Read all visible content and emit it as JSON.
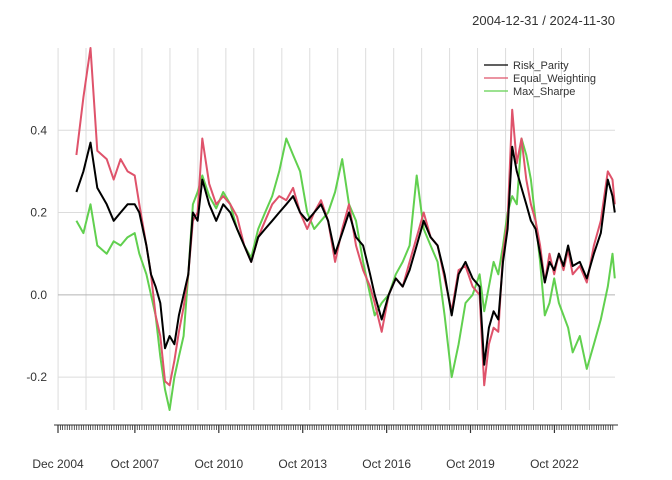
{
  "chart_data": {
    "type": "line",
    "subtitle": "2004-12-31 / 2024-11-30",
    "x_ticks": [
      "Dec 2004",
      "Oct 2007",
      "Oct 2010",
      "Oct 2013",
      "Oct 2016",
      "Oct 2019",
      "Oct 2022"
    ],
    "ylim": [
      -0.28,
      0.6
    ],
    "y_ticks": [
      "-0.2",
      "0.0",
      "0.2",
      "0.4"
    ],
    "y_tick_values": [
      -0.2,
      0.0,
      0.2,
      0.4
    ],
    "grid": true,
    "legend_position": "top-right",
    "series": [
      {
        "name": "Risk_Parity",
        "color": "#000000",
        "points": [
          [
            "2005-08",
            0.25
          ],
          [
            "2005-11",
            0.3
          ],
          [
            "2006-02",
            0.37
          ],
          [
            "2006-05",
            0.26
          ],
          [
            "2006-09",
            0.22
          ],
          [
            "2006-12",
            0.18
          ],
          [
            "2007-03",
            0.2
          ],
          [
            "2007-06",
            0.22
          ],
          [
            "2007-09",
            0.22
          ],
          [
            "2007-11",
            0.2
          ],
          [
            "2008-02",
            0.12
          ],
          [
            "2008-04",
            0.05
          ],
          [
            "2008-06",
            0.02
          ],
          [
            "2008-08",
            -0.02
          ],
          [
            "2008-10",
            -0.13
          ],
          [
            "2008-12",
            -0.1
          ],
          [
            "2009-02",
            -0.12
          ],
          [
            "2009-04",
            -0.05
          ],
          [
            "2009-06",
            0.0
          ],
          [
            "2009-08",
            0.05
          ],
          [
            "2009-10",
            0.2
          ],
          [
            "2009-12",
            0.18
          ],
          [
            "2010-02",
            0.28
          ],
          [
            "2010-05",
            0.22
          ],
          [
            "2010-08",
            0.18
          ],
          [
            "2010-11",
            0.22
          ],
          [
            "2011-02",
            0.2
          ],
          [
            "2011-05",
            0.16
          ],
          [
            "2011-08",
            0.12
          ],
          [
            "2011-11",
            0.08
          ],
          [
            "2012-02",
            0.14
          ],
          [
            "2012-05",
            0.16
          ],
          [
            "2012-08",
            0.18
          ],
          [
            "2012-11",
            0.2
          ],
          [
            "2013-02",
            0.22
          ],
          [
            "2013-05",
            0.24
          ],
          [
            "2013-08",
            0.2
          ],
          [
            "2013-11",
            0.18
          ],
          [
            "2014-02",
            0.2
          ],
          [
            "2014-05",
            0.22
          ],
          [
            "2014-08",
            0.18
          ],
          [
            "2014-11",
            0.1
          ],
          [
            "2015-02",
            0.15
          ],
          [
            "2015-05",
            0.2
          ],
          [
            "2015-08",
            0.14
          ],
          [
            "2015-11",
            0.12
          ],
          [
            "2016-02",
            0.05
          ],
          [
            "2016-04",
            0.0
          ],
          [
            "2016-07",
            -0.06
          ],
          [
            "2016-10",
            0.0
          ],
          [
            "2017-01",
            0.04
          ],
          [
            "2017-04",
            0.02
          ],
          [
            "2017-07",
            0.06
          ],
          [
            "2017-10",
            0.12
          ],
          [
            "2018-01",
            0.18
          ],
          [
            "2018-04",
            0.14
          ],
          [
            "2018-07",
            0.12
          ],
          [
            "2018-10",
            0.05
          ],
          [
            "2019-01",
            -0.05
          ],
          [
            "2019-04",
            0.05
          ],
          [
            "2019-07",
            0.08
          ],
          [
            "2019-10",
            0.04
          ],
          [
            "2020-01",
            0.02
          ],
          [
            "2020-03",
            -0.17
          ],
          [
            "2020-05",
            -0.08
          ],
          [
            "2020-07",
            -0.04
          ],
          [
            "2020-09",
            -0.06
          ],
          [
            "2020-11",
            0.08
          ],
          [
            "2021-01",
            0.16
          ],
          [
            "2021-03",
            0.36
          ],
          [
            "2021-05",
            0.3
          ],
          [
            "2021-07",
            0.26
          ],
          [
            "2021-09",
            0.22
          ],
          [
            "2021-11",
            0.18
          ],
          [
            "2022-01",
            0.16
          ],
          [
            "2022-03",
            0.1
          ],
          [
            "2022-05",
            0.03
          ],
          [
            "2022-07",
            0.08
          ],
          [
            "2022-09",
            0.06
          ],
          [
            "2022-11",
            0.1
          ],
          [
            "2023-01",
            0.07
          ],
          [
            "2023-03",
            0.12
          ],
          [
            "2023-05",
            0.07
          ],
          [
            "2023-08",
            0.08
          ],
          [
            "2023-11",
            0.04
          ],
          [
            "2024-02",
            0.1
          ],
          [
            "2024-05",
            0.15
          ],
          [
            "2024-08",
            0.28
          ],
          [
            "2024-10",
            0.24
          ],
          [
            "2024-11",
            0.2
          ]
        ]
      },
      {
        "name": "Equal_Weighting",
        "color": "#df536b",
        "points": [
          [
            "2005-08",
            0.34
          ],
          [
            "2005-11",
            0.48
          ],
          [
            "2006-02",
            0.6
          ],
          [
            "2006-05",
            0.35
          ],
          [
            "2006-09",
            0.33
          ],
          [
            "2006-12",
            0.28
          ],
          [
            "2007-03",
            0.33
          ],
          [
            "2007-06",
            0.3
          ],
          [
            "2007-09",
            0.29
          ],
          [
            "2007-11",
            0.22
          ],
          [
            "2008-02",
            0.12
          ],
          [
            "2008-04",
            0.05
          ],
          [
            "2008-06",
            -0.05
          ],
          [
            "2008-08",
            -0.1
          ],
          [
            "2008-10",
            -0.21
          ],
          [
            "2008-12",
            -0.22
          ],
          [
            "2009-02",
            -0.16
          ],
          [
            "2009-04",
            -0.09
          ],
          [
            "2009-06",
            -0.03
          ],
          [
            "2009-08",
            0.05
          ],
          [
            "2009-10",
            0.18
          ],
          [
            "2009-12",
            0.2
          ],
          [
            "2010-02",
            0.38
          ],
          [
            "2010-05",
            0.27
          ],
          [
            "2010-08",
            0.22
          ],
          [
            "2010-11",
            0.24
          ],
          [
            "2011-02",
            0.22
          ],
          [
            "2011-05",
            0.19
          ],
          [
            "2011-08",
            0.12
          ],
          [
            "2011-11",
            0.08
          ],
          [
            "2012-02",
            0.14
          ],
          [
            "2012-05",
            0.18
          ],
          [
            "2012-08",
            0.22
          ],
          [
            "2012-11",
            0.24
          ],
          [
            "2013-02",
            0.23
          ],
          [
            "2013-05",
            0.26
          ],
          [
            "2013-08",
            0.2
          ],
          [
            "2013-11",
            0.16
          ],
          [
            "2014-02",
            0.2
          ],
          [
            "2014-05",
            0.23
          ],
          [
            "2014-08",
            0.18
          ],
          [
            "2014-11",
            0.08
          ],
          [
            "2015-02",
            0.16
          ],
          [
            "2015-05",
            0.22
          ],
          [
            "2015-08",
            0.12
          ],
          [
            "2015-11",
            0.06
          ],
          [
            "2016-02",
            0.02
          ],
          [
            "2016-04",
            -0.02
          ],
          [
            "2016-07",
            -0.09
          ],
          [
            "2016-10",
            0.0
          ],
          [
            "2017-01",
            0.04
          ],
          [
            "2017-04",
            0.02
          ],
          [
            "2017-07",
            0.08
          ],
          [
            "2017-10",
            0.14
          ],
          [
            "2018-01",
            0.2
          ],
          [
            "2018-04",
            0.14
          ],
          [
            "2018-07",
            0.12
          ],
          [
            "2018-10",
            0.04
          ],
          [
            "2019-01",
            -0.04
          ],
          [
            "2019-04",
            0.06
          ],
          [
            "2019-07",
            0.07
          ],
          [
            "2019-10",
            0.02
          ],
          [
            "2020-01",
            0.0
          ],
          [
            "2020-03",
            -0.22
          ],
          [
            "2020-05",
            -0.12
          ],
          [
            "2020-07",
            -0.08
          ],
          [
            "2020-09",
            -0.09
          ],
          [
            "2020-11",
            0.1
          ],
          [
            "2021-01",
            0.18
          ],
          [
            "2021-03",
            0.45
          ],
          [
            "2021-05",
            0.32
          ],
          [
            "2021-07",
            0.38
          ],
          [
            "2021-09",
            0.28
          ],
          [
            "2021-11",
            0.22
          ],
          [
            "2022-01",
            0.18
          ],
          [
            "2022-03",
            0.12
          ],
          [
            "2022-05",
            0.03
          ],
          [
            "2022-07",
            0.1
          ],
          [
            "2022-09",
            0.05
          ],
          [
            "2022-11",
            0.1
          ],
          [
            "2023-01",
            0.06
          ],
          [
            "2023-03",
            0.11
          ],
          [
            "2023-05",
            0.05
          ],
          [
            "2023-08",
            0.07
          ],
          [
            "2023-11",
            0.03
          ],
          [
            "2024-02",
            0.12
          ],
          [
            "2024-05",
            0.18
          ],
          [
            "2024-08",
            0.3
          ],
          [
            "2024-10",
            0.28
          ],
          [
            "2024-11",
            0.22
          ]
        ]
      },
      {
        "name": "Max_Sharpe",
        "color": "#61d04f",
        "points": [
          [
            "2005-08",
            0.18
          ],
          [
            "2005-11",
            0.15
          ],
          [
            "2006-02",
            0.22
          ],
          [
            "2006-05",
            0.12
          ],
          [
            "2006-09",
            0.1
          ],
          [
            "2006-12",
            0.13
          ],
          [
            "2007-03",
            0.12
          ],
          [
            "2007-06",
            0.14
          ],
          [
            "2007-09",
            0.15
          ],
          [
            "2007-11",
            0.1
          ],
          [
            "2008-02",
            0.05
          ],
          [
            "2008-04",
            0.0
          ],
          [
            "2008-06",
            -0.05
          ],
          [
            "2008-08",
            -0.15
          ],
          [
            "2008-10",
            -0.23
          ],
          [
            "2008-12",
            -0.28
          ],
          [
            "2009-02",
            -0.2
          ],
          [
            "2009-04",
            -0.15
          ],
          [
            "2009-06",
            -0.1
          ],
          [
            "2009-08",
            0.05
          ],
          [
            "2009-10",
            0.22
          ],
          [
            "2009-12",
            0.25
          ],
          [
            "2010-02",
            0.29
          ],
          [
            "2010-05",
            0.24
          ],
          [
            "2010-08",
            0.21
          ],
          [
            "2010-11",
            0.25
          ],
          [
            "2011-02",
            0.22
          ],
          [
            "2011-05",
            0.16
          ],
          [
            "2011-08",
            0.12
          ],
          [
            "2011-11",
            0.09
          ],
          [
            "2012-02",
            0.16
          ],
          [
            "2012-05",
            0.2
          ],
          [
            "2012-08",
            0.24
          ],
          [
            "2012-11",
            0.3
          ],
          [
            "2013-02",
            0.38
          ],
          [
            "2013-05",
            0.34
          ],
          [
            "2013-08",
            0.3
          ],
          [
            "2013-11",
            0.2
          ],
          [
            "2014-02",
            0.16
          ],
          [
            "2014-05",
            0.18
          ],
          [
            "2014-08",
            0.2
          ],
          [
            "2014-11",
            0.25
          ],
          [
            "2015-02",
            0.33
          ],
          [
            "2015-05",
            0.22
          ],
          [
            "2015-08",
            0.18
          ],
          [
            "2015-11",
            0.08
          ],
          [
            "2016-02",
            0.0
          ],
          [
            "2016-04",
            -0.05
          ],
          [
            "2016-07",
            -0.02
          ],
          [
            "2016-10",
            0.0
          ],
          [
            "2017-01",
            0.05
          ],
          [
            "2017-04",
            0.08
          ],
          [
            "2017-07",
            0.12
          ],
          [
            "2017-10",
            0.29
          ],
          [
            "2018-01",
            0.16
          ],
          [
            "2018-04",
            0.12
          ],
          [
            "2018-07",
            0.08
          ],
          [
            "2018-10",
            -0.05
          ],
          [
            "2019-01",
            -0.2
          ],
          [
            "2019-04",
            -0.12
          ],
          [
            "2019-07",
            -0.02
          ],
          [
            "2019-10",
            0.0
          ],
          [
            "2020-01",
            0.05
          ],
          [
            "2020-03",
            -0.04
          ],
          [
            "2020-05",
            0.02
          ],
          [
            "2020-07",
            0.08
          ],
          [
            "2020-09",
            0.05
          ],
          [
            "2020-11",
            0.12
          ],
          [
            "2021-01",
            0.2
          ],
          [
            "2021-03",
            0.24
          ],
          [
            "2021-05",
            0.22
          ],
          [
            "2021-07",
            0.38
          ],
          [
            "2021-09",
            0.34
          ],
          [
            "2021-11",
            0.28
          ],
          [
            "2022-01",
            0.18
          ],
          [
            "2022-03",
            0.08
          ],
          [
            "2022-05",
            -0.05
          ],
          [
            "2022-07",
            -0.02
          ],
          [
            "2022-09",
            0.04
          ],
          [
            "2022-11",
            -0.02
          ],
          [
            "2023-01",
            -0.05
          ],
          [
            "2023-03",
            -0.08
          ],
          [
            "2023-05",
            -0.14
          ],
          [
            "2023-08",
            -0.1
          ],
          [
            "2023-11",
            -0.18
          ],
          [
            "2024-02",
            -0.12
          ],
          [
            "2024-05",
            -0.06
          ],
          [
            "2024-08",
            0.02
          ],
          [
            "2024-10",
            0.1
          ],
          [
            "2024-11",
            0.04
          ]
        ]
      }
    ]
  }
}
